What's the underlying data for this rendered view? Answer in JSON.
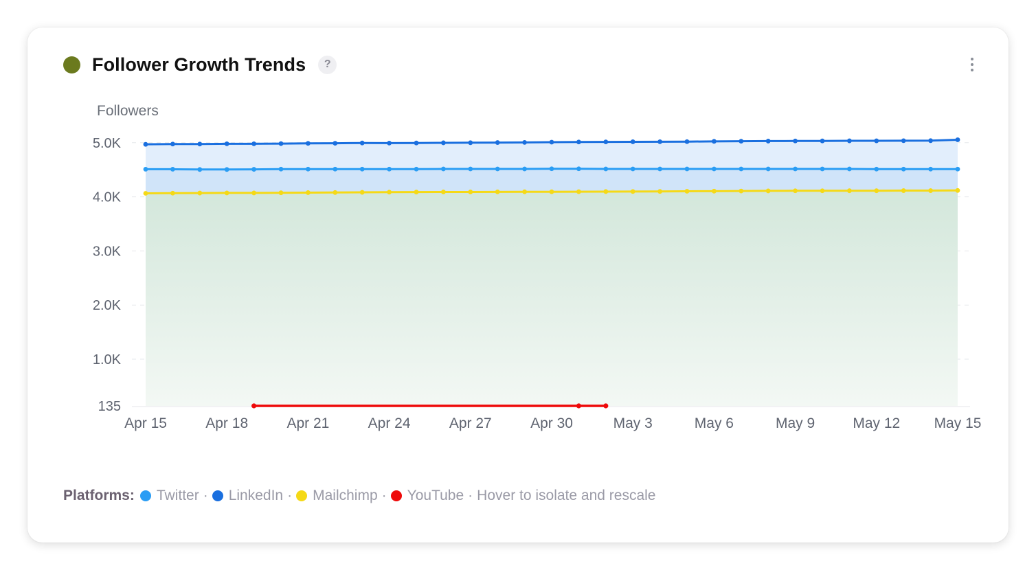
{
  "card": {
    "title": "Follower Growth Trends",
    "status_color": "#6b7a1e",
    "help_label": "?",
    "menu_icon": "kebab-vertical-icon"
  },
  "chart_data": {
    "type": "line",
    "ylabel": "Followers",
    "ylim": [
      135,
      5000
    ],
    "yticks": [
      {
        "value": 135,
        "label": "135"
      },
      {
        "value": 1000,
        "label": "1.0K"
      },
      {
        "value": 2000,
        "label": "2.0K"
      },
      {
        "value": 3000,
        "label": "3.0K"
      },
      {
        "value": 4000,
        "label": "4.0K"
      },
      {
        "value": 5000,
        "label": "5.0K"
      }
    ],
    "x_start": "2024-04-15",
    "xticks": [
      "Apr 15",
      "Apr 18",
      "Apr 21",
      "Apr 24",
      "Apr 27",
      "Apr 30",
      "May 3",
      "May 6",
      "May 9",
      "May 12",
      "May 15"
    ],
    "x": [
      "Apr 15",
      "Apr 16",
      "Apr 17",
      "Apr 18",
      "Apr 19",
      "Apr 20",
      "Apr 21",
      "Apr 22",
      "Apr 23",
      "Apr 24",
      "Apr 25",
      "Apr 26",
      "Apr 27",
      "Apr 28",
      "Apr 29",
      "Apr 30",
      "May 1",
      "May 2",
      "May 3",
      "May 4",
      "May 5",
      "May 6",
      "May 7",
      "May 8",
      "May 9",
      "May 10",
      "May 11",
      "May 12",
      "May 13",
      "May 14",
      "May 15"
    ],
    "series": [
      {
        "name": "LinkedIn",
        "color": "#1a6fdf",
        "area": true,
        "values": [
          4970,
          4975,
          4975,
          4980,
          4980,
          4983,
          4988,
          4990,
          4995,
          4993,
          4995,
          4998,
          5000,
          5003,
          5005,
          5010,
          5013,
          5015,
          5017,
          5018,
          5020,
          5025,
          5028,
          5030,
          5032,
          5033,
          5035,
          5035,
          5037,
          5038,
          5055
        ]
      },
      {
        "name": "Twitter",
        "color": "#2a9df4",
        "area": true,
        "values": [
          4510,
          4510,
          4505,
          4505,
          4508,
          4512,
          4512,
          4512,
          4512,
          4512,
          4512,
          4515,
          4515,
          4515,
          4515,
          4518,
          4518,
          4515,
          4515,
          4515,
          4515,
          4515,
          4515,
          4515,
          4515,
          4515,
          4515,
          4512,
          4512,
          4512,
          4512
        ]
      },
      {
        "name": "Mailchimp",
        "color": "#f5d916",
        "area": true,
        "values": [
          4065,
          4068,
          4070,
          4072,
          4072,
          4075,
          4078,
          4080,
          4083,
          4087,
          4088,
          4090,
          4090,
          4092,
          4093,
          4093,
          4095,
          4097,
          4098,
          4100,
          4103,
          4105,
          4108,
          4110,
          4112,
          4112,
          4113,
          4113,
          4115,
          4115,
          4118
        ]
      },
      {
        "name": "YouTube",
        "color": "#ee0a0a",
        "area": false,
        "values": [
          null,
          null,
          null,
          null,
          135,
          135,
          135,
          135,
          135,
          135,
          135,
          135,
          135,
          135,
          135,
          135,
          135,
          135,
          null,
          null,
          null,
          null,
          null,
          null,
          null,
          null,
          null,
          null,
          null,
          null,
          null
        ],
        "markers": [
          "Apr 19",
          "May 1",
          "May 2"
        ]
      }
    ],
    "legend_placement": "bottom-left",
    "grid": true
  },
  "legend": {
    "label": "Platforms:",
    "items": [
      {
        "name": "Twitter",
        "color": "#2a9df4"
      },
      {
        "name": "LinkedIn",
        "color": "#1a6fdf"
      },
      {
        "name": "Mailchimp",
        "color": "#f5d916"
      },
      {
        "name": "YouTube",
        "color": "#ee0a0a"
      }
    ],
    "separator": "·",
    "hint": "Hover to isolate and rescale"
  }
}
